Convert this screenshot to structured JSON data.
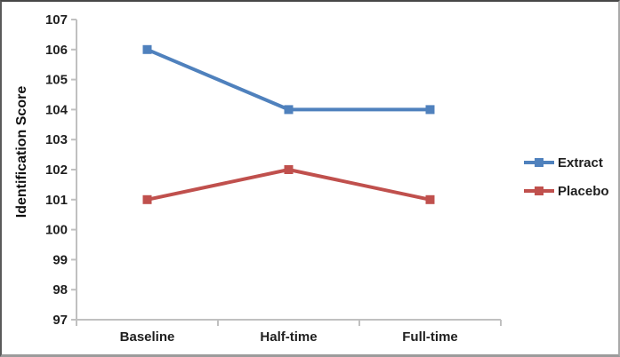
{
  "chart_data": {
    "type": "line",
    "title": "",
    "xlabel": "",
    "ylabel": "Identification Score",
    "categories": [
      "Baseline",
      "Half-time",
      "Full-time"
    ],
    "series": [
      {
        "name": "Extract",
        "values": [
          106,
          104,
          104
        ],
        "color": "#4F81BD"
      },
      {
        "name": "Placebo",
        "values": [
          101,
          102,
          101
        ],
        "color": "#C0504D"
      }
    ],
    "ylim": [
      97,
      107
    ],
    "yticks": [
      97,
      98,
      99,
      100,
      101,
      102,
      103,
      104,
      105,
      106,
      107
    ],
    "grid": false,
    "legend_position": "right",
    "marker": "square"
  },
  "colors": {
    "axis": "#C0C0C0",
    "text": "#1F1F1F"
  }
}
